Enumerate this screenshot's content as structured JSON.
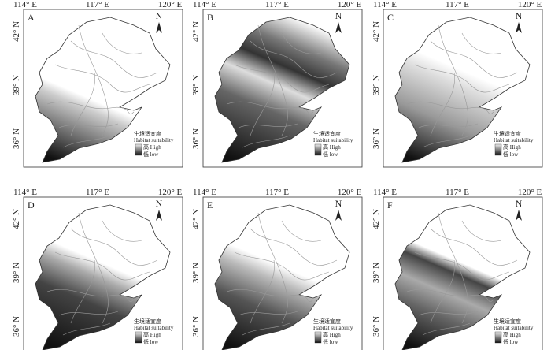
{
  "lon_labels": [
    "114° E",
    "117° E",
    "120° E"
  ],
  "lat_labels": [
    "42° N",
    "39° N",
    "36° N"
  ],
  "north": "N",
  "legend": {
    "title_zh": "生境适宜度",
    "title_en": "Habitat suitability",
    "high": "高 High",
    "low": "低 low"
  },
  "panels": [
    {
      "label": "A"
    },
    {
      "label": "B"
    },
    {
      "label": "C"
    },
    {
      "label": "D"
    },
    {
      "label": "E"
    },
    {
      "label": "F"
    }
  ]
}
